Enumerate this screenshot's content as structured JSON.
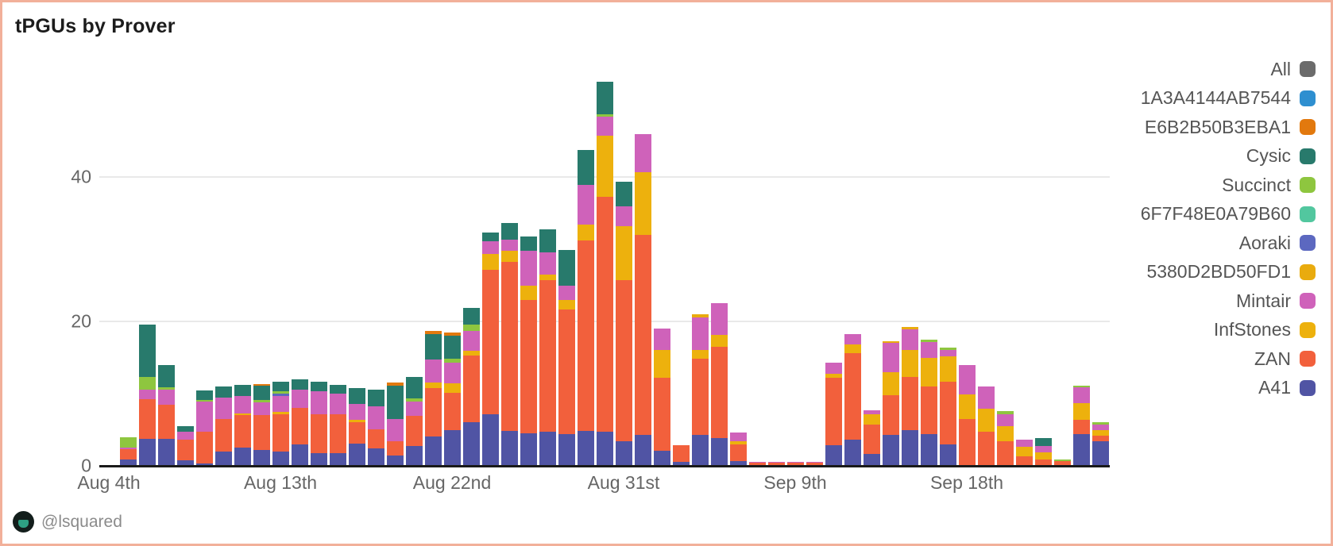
{
  "title": "tPGUs by Prover",
  "footer": {
    "handle": "@lsquared"
  },
  "legend": [
    {
      "label": "All",
      "color": "#6b6b6b"
    },
    {
      "label": "1A3A4144AB7544",
      "color": "#2e8fd0"
    },
    {
      "label": "E6B2B50B3EBA1",
      "color": "#e2790e"
    },
    {
      "label": "Cysic",
      "color": "#287a6c"
    },
    {
      "label": "Succinct",
      "color": "#8ec63f"
    },
    {
      "label": "6F7F48E0A79B60",
      "color": "#52c79f"
    },
    {
      "label": "Aoraki",
      "color": "#5c68c0"
    },
    {
      "label": "5380D2BD50FD1",
      "color": "#e9ab0e"
    },
    {
      "label": "Mintair",
      "color": "#cf62ba"
    },
    {
      "label": "InfStones",
      "color": "#edb10d"
    },
    {
      "label": "ZAN",
      "color": "#f2603c"
    },
    {
      "label": "A41",
      "color": "#5054a4"
    }
  ],
  "chart_data": {
    "type": "bar",
    "stacked": true,
    "title": "tPGUs by Prover",
    "xlabel": "",
    "ylabel": "",
    "ylim": [
      0,
      55.5
    ],
    "yticks": [
      0,
      20,
      40
    ],
    "grid": true,
    "legend_position": "right",
    "total_slots": 53,
    "x_axis_labels": [
      {
        "label": "Aug 4th",
        "slot": 0
      },
      {
        "label": "Aug 13th",
        "slot": 9
      },
      {
        "label": "Aug 22nd",
        "slot": 18
      },
      {
        "label": "Aug 31st",
        "slot": 27
      },
      {
        "label": "Sep 9th",
        "slot": 36
      },
      {
        "label": "Sep 18th",
        "slot": 45
      }
    ],
    "stack_order": [
      "A41",
      "ZAN",
      "InfStones",
      "Mintair",
      "5380D2BD50FD1",
      "Aoraki",
      "6F7F48E0A79B60",
      "Succinct",
      "Cysic",
      "E6B2B50B3EBA1",
      "1A3A4144AB7544"
    ],
    "series_colors": {
      "A41": "#5054a4",
      "ZAN": "#f2603c",
      "InfStones": "#edb10d",
      "Mintair": "#cf62ba",
      "5380D2BD50FD1": "#e9ab0e",
      "Aoraki": "#5c68c0",
      "6F7F48E0A79B60": "#52c79f",
      "Succinct": "#8ec63f",
      "Cysic": "#287a6c",
      "E6B2B50B3EBA1": "#e2790e",
      "1A3A4144AB7544": "#2e8fd0"
    },
    "bars": [
      {
        "slot": 1,
        "segments": {
          "A41": 0.9,
          "ZAN": 1.4,
          "Mintair": 0.2,
          "Succinct": 1.5
        }
      },
      {
        "slot": 2,
        "segments": {
          "A41": 3.7,
          "ZAN": 5.5,
          "Mintair": 1.3,
          "Succinct": 1.8,
          "Cysic": 7.3
        }
      },
      {
        "slot": 3,
        "segments": {
          "A41": 3.7,
          "ZAN": 4.8,
          "Mintair": 2.0,
          "Succinct": 0.4,
          "Cysic": 3.1
        }
      },
      {
        "slot": 4,
        "segments": {
          "A41": 0.8,
          "ZAN": 2.8,
          "Mintair": 1.1,
          "Cysic": 0.8
        }
      },
      {
        "slot": 5,
        "segments": {
          "A41": 0.3,
          "ZAN": 4.4,
          "Mintair": 4.2,
          "Succinct": 0.2,
          "Cysic": 1.4
        }
      },
      {
        "slot": 6,
        "segments": {
          "A41": 2.0,
          "ZAN": 4.5,
          "Mintair": 3.0,
          "Cysic": 1.5
        }
      },
      {
        "slot": 7,
        "segments": {
          "A41": 2.5,
          "ZAN": 4.5,
          "InfStones": 0.3,
          "Mintair": 2.4,
          "Cysic": 1.5
        }
      },
      {
        "slot": 8,
        "segments": {
          "A41": 2.2,
          "ZAN": 4.8,
          "Mintair": 1.8,
          "Succinct": 0.3,
          "Cysic": 2.0,
          "E6B2B50B3EBA1": 0.2
        }
      },
      {
        "slot": 9,
        "segments": {
          "A41": 2.0,
          "ZAN": 5.2,
          "InfStones": 0.3,
          "Mintair": 2.2,
          "Aoraki": 0.3,
          "Succinct": 0.3,
          "Cysic": 1.4
        }
      },
      {
        "slot": 10,
        "segments": {
          "A41": 3.0,
          "ZAN": 5.0,
          "Mintair": 2.5,
          "Cysic": 1.5
        }
      },
      {
        "slot": 11,
        "segments": {
          "A41": 1.8,
          "ZAN": 5.4,
          "Mintair": 3.1,
          "Cysic": 1.4
        }
      },
      {
        "slot": 12,
        "segments": {
          "A41": 1.8,
          "ZAN": 5.3,
          "Mintair": 2.9,
          "Cysic": 1.2
        }
      },
      {
        "slot": 13,
        "segments": {
          "A41": 3.1,
          "ZAN": 2.9,
          "InfStones": 0.4,
          "Mintair": 2.2,
          "Cysic": 2.2
        }
      },
      {
        "slot": 14,
        "segments": {
          "A41": 2.4,
          "ZAN": 2.7,
          "Mintair": 3.1,
          "Cysic": 2.4
        }
      },
      {
        "slot": 15,
        "segments": {
          "A41": 1.4,
          "ZAN": 2.0,
          "Mintair": 3.1,
          "Cysic": 4.6,
          "E6B2B50B3EBA1": 0.4
        }
      },
      {
        "slot": 16,
        "segments": {
          "A41": 2.7,
          "ZAN": 4.2,
          "Mintair": 2.0,
          "Succinct": 0.4,
          "Cysic": 3.0
        }
      },
      {
        "slot": 17,
        "segments": {
          "A41": 4.1,
          "ZAN": 6.7,
          "InfStones": 0.7,
          "Mintair": 3.2,
          "Cysic": 3.5,
          "E6B2B50B3EBA1": 0.5
        }
      },
      {
        "slot": 18,
        "segments": {
          "A41": 5.0,
          "ZAN": 5.1,
          "InfStones": 1.3,
          "Mintair": 2.9,
          "Succinct": 0.5,
          "Cysic": 3.2,
          "E6B2B50B3EBA1": 0.5
        }
      },
      {
        "slot": 19,
        "segments": {
          "A41": 6.0,
          "ZAN": 9.3,
          "InfStones": 0.6,
          "Mintair": 2.8,
          "Succinct": 0.9,
          "Cysic": 2.3
        }
      },
      {
        "slot": 20,
        "segments": {
          "A41": 7.2,
          "ZAN": 20.0,
          "InfStones": 2.1,
          "Mintair": 1.8,
          "Cysic": 1.2
        }
      },
      {
        "slot": 21,
        "segments": {
          "A41": 4.8,
          "ZAN": 23.5,
          "InfStones": 1.5,
          "Mintair": 1.5,
          "Cysic": 2.3
        }
      },
      {
        "slot": 22,
        "segments": {
          "A41": 4.5,
          "ZAN": 18.5,
          "InfStones": 2.0,
          "Mintair": 4.8,
          "Cysic": 2.0
        }
      },
      {
        "slot": 23,
        "segments": {
          "A41": 4.7,
          "ZAN": 21.0,
          "InfStones": 0.8,
          "Mintair": 3.1,
          "Cysic": 3.1
        }
      },
      {
        "slot": 24,
        "segments": {
          "A41": 4.4,
          "ZAN": 17.3,
          "InfStones": 1.3,
          "Mintair": 2.0,
          "Cysic": 4.9
        }
      },
      {
        "slot": 25,
        "segments": {
          "A41": 4.8,
          "ZAN": 26.4,
          "InfStones": 2.2,
          "Mintair": 5.5,
          "Cysic": 4.8
        }
      },
      {
        "slot": 26,
        "segments": {
          "A41": 4.7,
          "ZAN": 32.6,
          "InfStones": 8.4,
          "Mintair": 2.7,
          "Succinct": 0.3,
          "Cysic": 4.5
        }
      },
      {
        "slot": 27,
        "segments": {
          "A41": 3.4,
          "ZAN": 22.3,
          "InfStones": 7.5,
          "Mintair": 2.7,
          "Cysic": 3.4
        }
      },
      {
        "slot": 28,
        "segments": {
          "A41": 4.3,
          "ZAN": 27.7,
          "InfStones": 8.7,
          "Mintair": 5.2
        }
      },
      {
        "slot": 29,
        "segments": {
          "A41": 2.1,
          "ZAN": 10.1,
          "InfStones": 3.8,
          "Mintair": 3.0
        }
      },
      {
        "slot": 30,
        "segments": {
          "A41": 0.5,
          "ZAN": 2.4
        }
      },
      {
        "slot": 31,
        "segments": {
          "A41": 4.3,
          "ZAN": 10.5,
          "InfStones": 1.2,
          "Mintair": 4.6,
          "5380D2BD50FD1": 0.4
        }
      },
      {
        "slot": 32,
        "segments": {
          "A41": 3.9,
          "ZAN": 12.6,
          "InfStones": 1.6,
          "Mintair": 4.4
        }
      },
      {
        "slot": 33,
        "segments": {
          "A41": 0.7,
          "ZAN": 2.3,
          "InfStones": 0.4,
          "Mintair": 1.2
        }
      },
      {
        "slot": 34,
        "segments": {
          "ZAN": 0.4,
          "Mintair": 0.1
        }
      },
      {
        "slot": 35,
        "segments": {
          "ZAN": 0.4,
          "Mintair": 0.1
        }
      },
      {
        "slot": 36,
        "segments": {
          "ZAN": 0.4,
          "Mintair": 0.1
        }
      },
      {
        "slot": 37,
        "segments": {
          "ZAN": 0.4,
          "Mintair": 0.1
        }
      },
      {
        "slot": 38,
        "segments": {
          "A41": 2.9,
          "ZAN": 9.3,
          "InfStones": 0.6,
          "Mintair": 1.5
        }
      },
      {
        "slot": 39,
        "segments": {
          "A41": 3.6,
          "ZAN": 12.0,
          "InfStones": 1.2,
          "Mintair": 1.4
        }
      },
      {
        "slot": 40,
        "segments": {
          "A41": 1.6,
          "ZAN": 4.1,
          "InfStones": 1.5,
          "Mintair": 0.5
        }
      },
      {
        "slot": 41,
        "segments": {
          "A41": 4.3,
          "ZAN": 5.5,
          "InfStones": 3.2,
          "Mintair": 4.0,
          "5380D2BD50FD1": 0.3
        }
      },
      {
        "slot": 42,
        "segments": {
          "A41": 4.9,
          "ZAN": 7.4,
          "InfStones": 3.7,
          "Mintair": 2.9,
          "5380D2BD50FD1": 0.3
        }
      },
      {
        "slot": 43,
        "segments": {
          "A41": 4.4,
          "ZAN": 6.6,
          "InfStones": 3.9,
          "Mintair": 2.2,
          "Succinct": 0.4
        }
      },
      {
        "slot": 44,
        "segments": {
          "A41": 3.0,
          "ZAN": 8.7,
          "InfStones": 3.5,
          "Mintair": 0.8,
          "Succinct": 0.4
        }
      },
      {
        "slot": 45,
        "segments": {
          "ZAN": 6.5,
          "InfStones": 3.4,
          "Mintair": 4.1
        }
      },
      {
        "slot": 46,
        "segments": {
          "ZAN": 4.7,
          "InfStones": 3.2,
          "Mintair": 3.1
        }
      },
      {
        "slot": 47,
        "segments": {
          "ZAN": 3.4,
          "InfStones": 2.1,
          "Mintair": 1.7,
          "Succinct": 0.4
        }
      },
      {
        "slot": 48,
        "segments": {
          "ZAN": 1.3,
          "InfStones": 1.3,
          "Mintair": 1.0
        }
      },
      {
        "slot": 49,
        "segments": {
          "ZAN": 0.9,
          "InfStones": 1.0,
          "Mintair": 0.8,
          "Cysic": 1.2
        }
      },
      {
        "slot": 50,
        "segments": {
          "ZAN": 0.7,
          "Succinct": 0.2
        }
      },
      {
        "slot": 51,
        "segments": {
          "A41": 4.4,
          "ZAN": 2.0,
          "InfStones": 2.3,
          "Mintair": 2.2,
          "Succinct": 0.2
        }
      },
      {
        "slot": 52,
        "segments": {
          "A41": 3.4,
          "ZAN": 0.8,
          "InfStones": 0.8,
          "Mintair": 0.7,
          "Succinct": 0.3
        }
      }
    ]
  }
}
